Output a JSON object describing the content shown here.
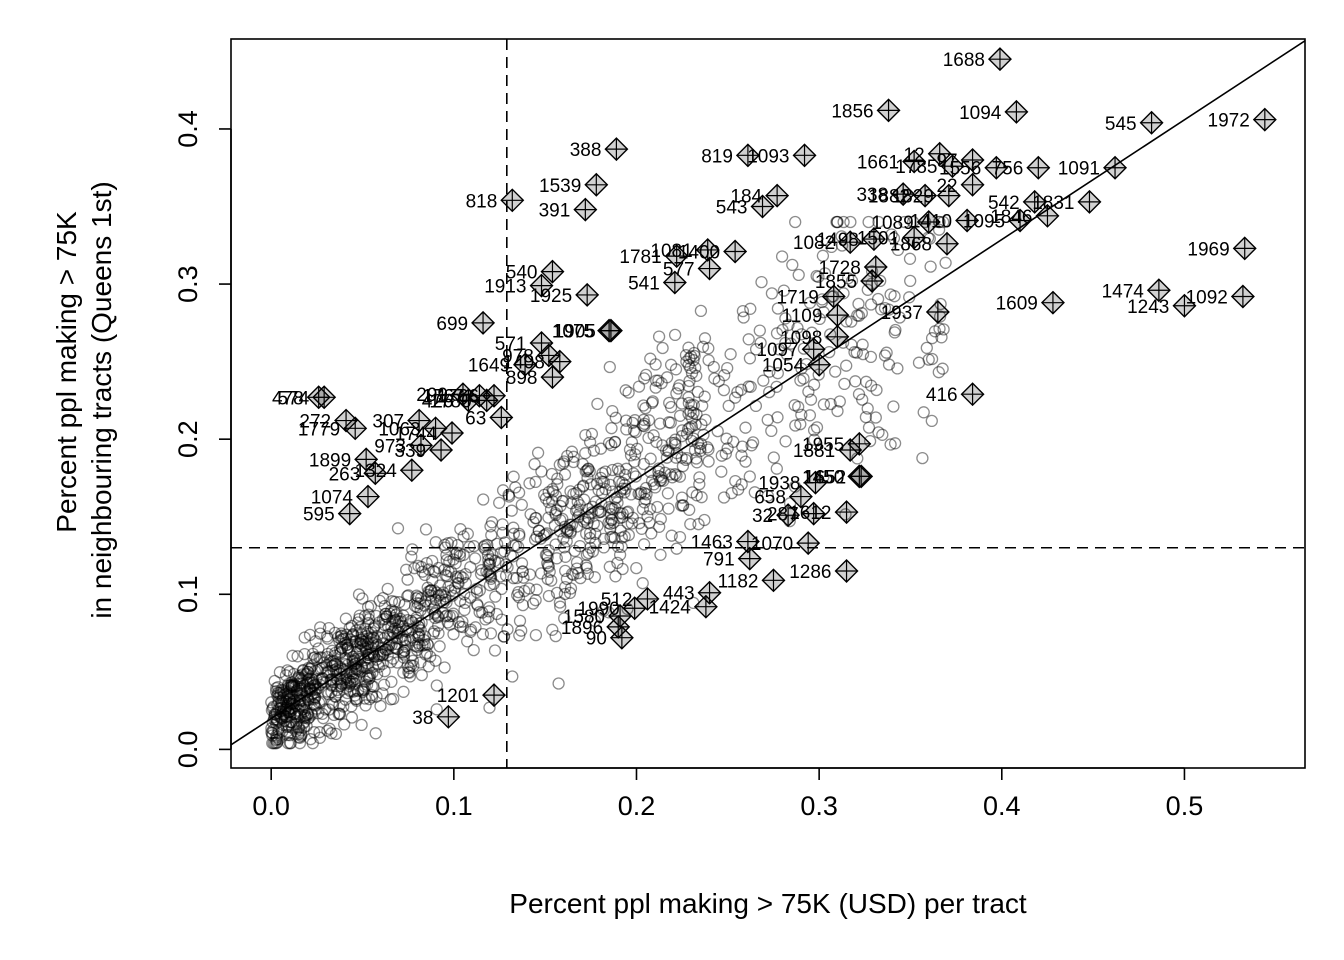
{
  "chart_data": {
    "type": "scatter",
    "title": "",
    "xlabel": "Percent ppl making > 75K (USD) per tract",
    "ylabel_lines": [
      "Percent ppl making > 75K",
      "in neighbouring tracts (Queens 1st)"
    ],
    "xlim": [
      -0.022,
      0.566
    ],
    "ylim": [
      -0.012,
      0.458
    ],
    "x_ticks": [
      0.0,
      0.1,
      0.2,
      0.3,
      0.4,
      0.5
    ],
    "x_tick_labels": [
      "0.0",
      "0.1",
      "0.2",
      "0.3",
      "0.4",
      "0.5"
    ],
    "y_ticks": [
      0.0,
      0.1,
      0.2,
      0.3,
      0.4
    ],
    "y_tick_labels": [
      "0.0",
      "0.1",
      "0.2",
      "0.3",
      "0.4"
    ],
    "grid": false,
    "legend": "none",
    "reference_lines": {
      "vertical_dashed_x": 0.129,
      "horizontal_dashed_y": 0.13,
      "fit_line": {
        "intercept": 0.0199,
        "slope": 0.772
      }
    },
    "background_points_summary": {
      "count_approx": 1900,
      "marker": "open circle, semi-transparent grey",
      "note": "dense cloud along fit line, x 0-0.4, y 0-0.35"
    },
    "influential_points": [
      {
        "id": "1688",
        "x": 0.399,
        "y": 0.445
      },
      {
        "id": "1856",
        "x": 0.338,
        "y": 0.412
      },
      {
        "id": "1094",
        "x": 0.408,
        "y": 0.411
      },
      {
        "id": "545",
        "x": 0.482,
        "y": 0.404
      },
      {
        "id": "1972",
        "x": 0.544,
        "y": 0.406
      },
      {
        "id": "388",
        "x": 0.189,
        "y": 0.387
      },
      {
        "id": "819",
        "x": 0.261,
        "y": 0.383
      },
      {
        "id": "1093",
        "x": 0.292,
        "y": 0.383
      },
      {
        "id": "1661",
        "x": 0.352,
        "y": 0.379
      },
      {
        "id": "12",
        "x": 0.366,
        "y": 0.384
      },
      {
        "id": "1785",
        "x": 0.373,
        "y": 0.376
      },
      {
        "id": "97",
        "x": 0.384,
        "y": 0.38
      },
      {
        "id": "1556",
        "x": 0.397,
        "y": 0.375
      },
      {
        "id": "756",
        "x": 0.42,
        "y": 0.375
      },
      {
        "id": "1091",
        "x": 0.462,
        "y": 0.375
      },
      {
        "id": "22",
        "x": 0.384,
        "y": 0.364
      },
      {
        "id": "1539",
        "x": 0.178,
        "y": 0.364
      },
      {
        "id": "818",
        "x": 0.132,
        "y": 0.354
      },
      {
        "id": "391",
        "x": 0.172,
        "y": 0.348
      },
      {
        "id": "184",
        "x": 0.277,
        "y": 0.357
      },
      {
        "id": "543",
        "x": 0.269,
        "y": 0.35
      },
      {
        "id": "338",
        "x": 0.346,
        "y": 0.358
      },
      {
        "id": "1882",
        "x": 0.358,
        "y": 0.357
      },
      {
        "id": "1829",
        "x": 0.371,
        "y": 0.357
      },
      {
        "id": "542",
        "x": 0.418,
        "y": 0.353
      },
      {
        "id": "1831",
        "x": 0.448,
        "y": 0.353
      },
      {
        "id": "1846",
        "x": 0.425,
        "y": 0.344
      },
      {
        "id": "1089",
        "x": 0.36,
        "y": 0.34
      },
      {
        "id": "1410",
        "x": 0.381,
        "y": 0.341
      },
      {
        "id": "1095",
        "x": 0.41,
        "y": 0.341
      },
      {
        "id": "1082",
        "x": 0.317,
        "y": 0.327
      },
      {
        "id": "1498",
        "x": 0.33,
        "y": 0.329
      },
      {
        "id": "1501",
        "x": 0.352,
        "y": 0.33
      },
      {
        "id": "1868",
        "x": 0.37,
        "y": 0.326
      },
      {
        "id": "1969",
        "x": 0.533,
        "y": 0.323
      },
      {
        "id": "1781",
        "x": 0.222,
        "y": 0.318
      },
      {
        "id": "1781b",
        "label": "1081",
        "x": 0.239,
        "y": 0.322
      },
      {
        "id": "1400",
        "x": 0.254,
        "y": 0.321
      },
      {
        "id": "1728",
        "x": 0.331,
        "y": 0.311
      },
      {
        "id": "577",
        "x": 0.24,
        "y": 0.31
      },
      {
        "id": "540",
        "x": 0.154,
        "y": 0.308
      },
      {
        "id": "1913",
        "x": 0.148,
        "y": 0.299
      },
      {
        "id": "541",
        "x": 0.221,
        "y": 0.301
      },
      {
        "id": "1855",
        "x": 0.329,
        "y": 0.302
      },
      {
        "id": "1925",
        "x": 0.173,
        "y": 0.293
      },
      {
        "id": "1474",
        "x": 0.486,
        "y": 0.296
      },
      {
        "id": "1092",
        "x": 0.532,
        "y": 0.292
      },
      {
        "id": "1243",
        "x": 0.5,
        "y": 0.286
      },
      {
        "id": "1609",
        "x": 0.428,
        "y": 0.288
      },
      {
        "id": "1719",
        "x": 0.308,
        "y": 0.292
      },
      {
        "id": "1109",
        "x": 0.31,
        "y": 0.28
      },
      {
        "id": "1937",
        "x": 0.365,
        "y": 0.282
      },
      {
        "id": "699",
        "x": 0.116,
        "y": 0.275
      },
      {
        "id": "1075",
        "x": 0.185,
        "y": 0.27
      },
      {
        "id": "1905",
        "x": 0.186,
        "y": 0.27
      },
      {
        "id": "1098",
        "x": 0.31,
        "y": 0.266
      },
      {
        "id": "571",
        "x": 0.148,
        "y": 0.262
      },
      {
        "id": "1097",
        "x": 0.297,
        "y": 0.258
      },
      {
        "id": "978",
        "x": 0.152,
        "y": 0.254
      },
      {
        "id": "1649",
        "x": 0.139,
        "y": 0.248
      },
      {
        "id": "1408",
        "x": 0.158,
        "y": 0.25
      },
      {
        "id": "898",
        "x": 0.154,
        "y": 0.24
      },
      {
        "id": "1082b",
        "label": "1054",
        "x": 0.3,
        "y": 0.248
      },
      {
        "id": "416",
        "x": 0.384,
        "y": 0.229
      },
      {
        "id": "478",
        "x": 0.026,
        "y": 0.227
      },
      {
        "id": "574",
        "x": 0.029,
        "y": 0.227
      },
      {
        "id": "299",
        "x": 0.105,
        "y": 0.229
      },
      {
        "id": "1767",
        "x": 0.114,
        "y": 0.228
      },
      {
        "id": "1766",
        "x": 0.122,
        "y": 0.228
      },
      {
        "id": "426",
        "x": 0.108,
        "y": 0.225
      },
      {
        "id": "1780",
        "x": 0.118,
        "y": 0.225
      },
      {
        "id": "63",
        "x": 0.126,
        "y": 0.214
      },
      {
        "id": "307",
        "x": 0.081,
        "y": 0.212
      },
      {
        "id": "272",
        "x": 0.041,
        "y": 0.212
      },
      {
        "id": "1779",
        "x": 0.046,
        "y": 0.207
      },
      {
        "id": "1063",
        "x": 0.09,
        "y": 0.207
      },
      {
        "id": "1744",
        "x": 0.099,
        "y": 0.204
      },
      {
        "id": "973",
        "x": 0.082,
        "y": 0.196
      },
      {
        "id": "339",
        "x": 0.093,
        "y": 0.193
      },
      {
        "id": "1899",
        "x": 0.052,
        "y": 0.187
      },
      {
        "id": "263",
        "x": 0.057,
        "y": 0.178
      },
      {
        "id": "1324",
        "x": 0.077,
        "y": 0.18
      },
      {
        "id": "1955",
        "x": 0.322,
        "y": 0.197
      },
      {
        "id": "1881",
        "x": 0.317,
        "y": 0.193
      },
      {
        "id": "1450",
        "x": 0.322,
        "y": 0.176
      },
      {
        "id": "1652",
        "x": 0.323,
        "y": 0.176
      },
      {
        "id": "1938",
        "x": 0.298,
        "y": 0.172
      },
      {
        "id": "1074",
        "x": 0.053,
        "y": 0.163
      },
      {
        "id": "658",
        "x": 0.29,
        "y": 0.163
      },
      {
        "id": "595",
        "x": 0.043,
        "y": 0.152
      },
      {
        "id": "32",
        "x": 0.283,
        "y": 0.151
      },
      {
        "id": "287",
        "x": 0.297,
        "y": 0.152
      },
      {
        "id": "1612",
        "x": 0.315,
        "y": 0.153
      },
      {
        "id": "1463",
        "x": 0.261,
        "y": 0.134
      },
      {
        "id": "1070",
        "x": 0.294,
        "y": 0.133
      },
      {
        "id": "791",
        "x": 0.262,
        "y": 0.123
      },
      {
        "id": "1286",
        "x": 0.315,
        "y": 0.115
      },
      {
        "id": "1182",
        "x": 0.275,
        "y": 0.109
      },
      {
        "id": "443",
        "x": 0.24,
        "y": 0.101
      },
      {
        "id": "512",
        "x": 0.206,
        "y": 0.097
      },
      {
        "id": "1424",
        "x": 0.238,
        "y": 0.092
      },
      {
        "id": "1990",
        "x": 0.199,
        "y": 0.091
      },
      {
        "id": "1580",
        "x": 0.191,
        "y": 0.086
      },
      {
        "id": "1896",
        "x": 0.19,
        "y": 0.079
      },
      {
        "id": "90",
        "x": 0.192,
        "y": 0.072
      },
      {
        "id": "1201",
        "x": 0.122,
        "y": 0.035
      },
      {
        "id": "38",
        "x": 0.097,
        "y": 0.021
      }
    ]
  }
}
